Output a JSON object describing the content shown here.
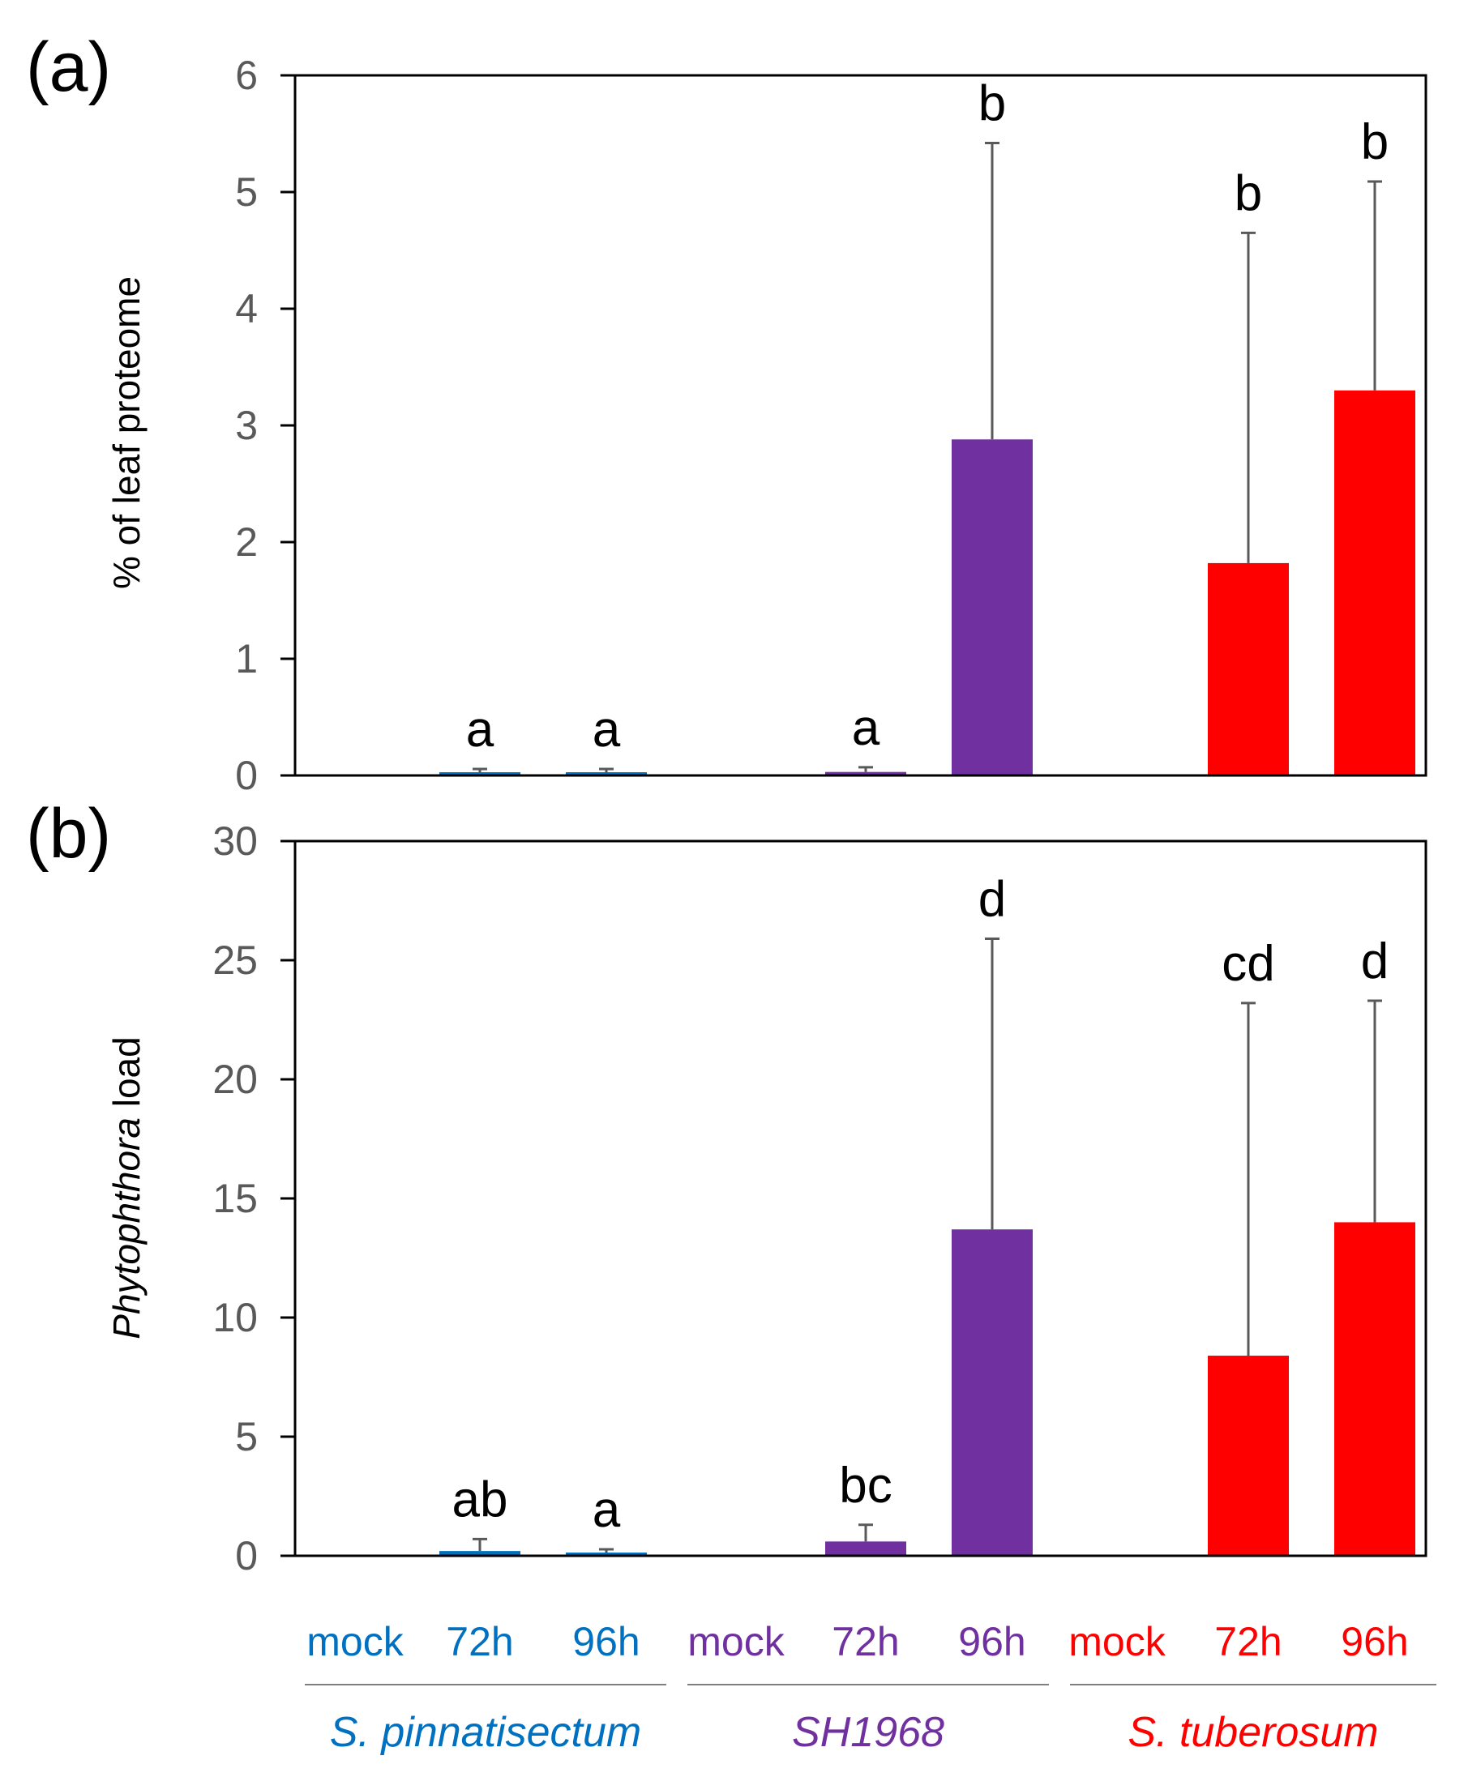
{
  "colors": {
    "pinnatisectum": "#0070c0",
    "sh1968": "#7030a0",
    "tuberosum": "#ff0000",
    "tick_text": "#595959",
    "error_bar": "#595959"
  },
  "categories": [
    "mock",
    "72h",
    "96h",
    "mock",
    "72h",
    "96h",
    "mock",
    "72h",
    "96h"
  ],
  "groups": [
    {
      "name": "S. pinnatisectum",
      "color_key": "pinnatisectum"
    },
    {
      "name": "SH1968",
      "color_key": "sh1968"
    },
    {
      "name": "S. tuberosum",
      "color_key": "tuberosum"
    }
  ],
  "chart_data": [
    {
      "type": "bar",
      "panel_label": "(a)",
      "ylabel": "% of leaf proteome",
      "ylim": [
        0,
        6
      ],
      "yticks": [
        0,
        1,
        2,
        3,
        4,
        5,
        6
      ],
      "categories": [
        "mock",
        "72h",
        "96h",
        "mock",
        "72h",
        "96h",
        "mock",
        "72h",
        "96h"
      ],
      "values": [
        0,
        0.02,
        0.02,
        0,
        0.03,
        2.88,
        0,
        1.82,
        3.3
      ],
      "error_upper": [
        0,
        0.04,
        0.04,
        0,
        0.07,
        5.42,
        0,
        4.65,
        5.09
      ],
      "sig_letters": [
        "",
        "a",
        "a",
        "",
        "a",
        "b",
        "",
        "b",
        "b"
      ]
    },
    {
      "type": "bar",
      "panel_label": "(b)",
      "ylabel_italic": "Phytophthora",
      "ylabel_rest": " load",
      "ylim": [
        0,
        30
      ],
      "yticks": [
        0,
        5,
        10,
        15,
        20,
        25,
        30
      ],
      "categories": [
        "mock",
        "72h",
        "96h",
        "mock",
        "72h",
        "96h",
        "mock",
        "72h",
        "96h"
      ],
      "values": [
        0,
        0.2,
        0.05,
        0,
        0.6,
        13.7,
        0,
        8.4,
        14.0
      ],
      "error_upper": [
        0,
        0.7,
        0.1,
        0,
        1.3,
        25.9,
        0,
        23.2,
        23.3
      ],
      "sig_letters": [
        "",
        "ab",
        "a",
        "",
        "bc",
        "d",
        "",
        "cd",
        "d"
      ]
    }
  ]
}
